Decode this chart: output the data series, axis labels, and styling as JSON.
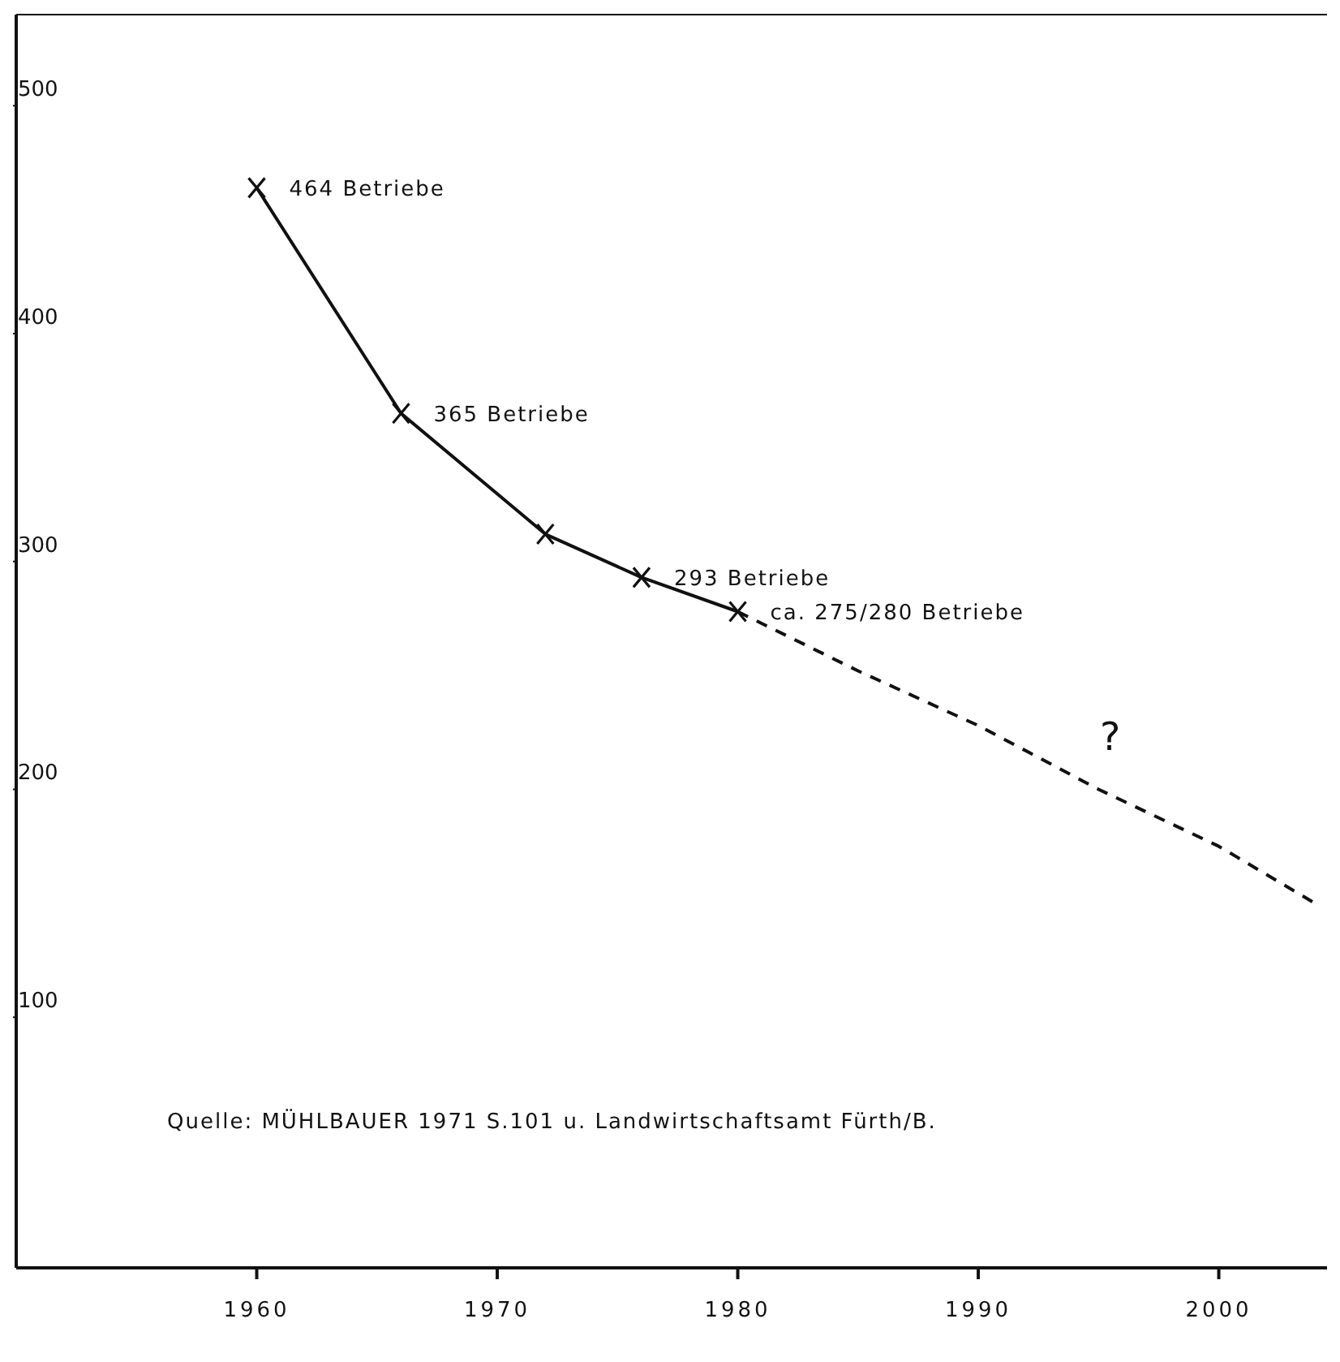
{
  "chart_data": {
    "type": "line",
    "series": [
      {
        "color": "#111111",
        "x": [
          1960,
          1966,
          1972,
          1976,
          1980
        ],
        "values": [
          464,
          365,
          312,
          293,
          278
        ],
        "marker": "cross",
        "line_style": "solid"
      },
      {
        "color": "#111111",
        "x": [
          1980,
          1985,
          1990,
          1995,
          2000,
          2004
        ],
        "values": [
          278,
          252,
          228,
          200,
          175,
          150
        ],
        "marker": "none",
        "line_style": "dashed"
      }
    ],
    "xlim": [
      1950,
      2004.5
    ],
    "xticks": [
      1960,
      1970,
      1980,
      1990,
      2000
    ],
    "ylim": [
      -10,
      540
    ],
    "yticks": [
      100,
      200,
      300,
      400,
      500
    ],
    "annotations": [
      {
        "text": "464 Betriebe",
        "x": 1960,
        "y": 464
      },
      {
        "text": "365 Betriebe",
        "x": 1966,
        "y": 365
      },
      {
        "text": "293 Betriebe",
        "x": 1976,
        "y": 293
      },
      {
        "text": "ca. 275/280 Betriebe",
        "x": 1980,
        "y": 278
      },
      "?",
      "Quelle: MÜHLBAUER 1971 S.101 u. Landwirtschaftsamt Fürth/B."
    ]
  }
}
